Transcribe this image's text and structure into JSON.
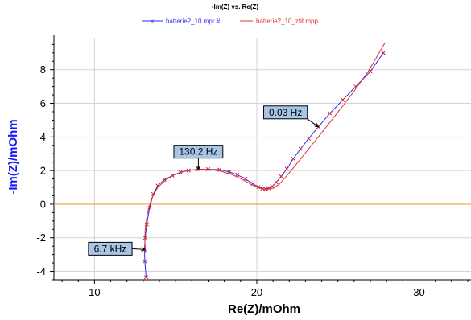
{
  "chart_data": {
    "type": "line",
    "title": "-Im(Z) vs. Re(Z)",
    "xlabel": "Re(Z)/mOhm",
    "ylabel": "-Im(Z)/mOhm",
    "xlim": [
      7.5,
      33.2
    ],
    "ylim": [
      -4.5,
      9.9
    ],
    "xticks": [
      10,
      20,
      30
    ],
    "yticks": [
      -4,
      -2,
      0,
      2,
      4,
      6,
      8
    ],
    "grid": true,
    "legend_position": "top-center",
    "reference_line": {
      "y": 0,
      "color": "#f0a040"
    },
    "series": [
      {
        "name": "batterie2_10.mpr #",
        "color": "#2a2aff",
        "marker": "x",
        "x": [
          13.18,
          13.1,
          13.08,
          13.12,
          13.22,
          13.4,
          13.62,
          13.9,
          14.3,
          14.8,
          15.3,
          15.8,
          16.4,
          17.0,
          17.7,
          18.3,
          18.8,
          19.3,
          19.75,
          20.1,
          20.35,
          20.55,
          20.75,
          20.95,
          21.2,
          21.5,
          21.85,
          22.25,
          22.7,
          23.2,
          23.8,
          24.5,
          25.3,
          26.1,
          27.0,
          27.8
        ],
        "y": [
          -4.35,
          -3.4,
          -2.7,
          -2.0,
          -1.2,
          -0.2,
          0.6,
          1.1,
          1.45,
          1.7,
          1.9,
          2.0,
          2.07,
          2.08,
          2.05,
          1.92,
          1.75,
          1.5,
          1.22,
          1.02,
          0.92,
          0.9,
          0.95,
          1.05,
          1.3,
          1.65,
          2.1,
          2.7,
          3.3,
          3.9,
          4.6,
          5.4,
          6.2,
          7.0,
          7.9,
          9.0
        ]
      },
      {
        "name": "batterie2_10_zfit.mpp",
        "color": "#e03030",
        "marker": "none",
        "x": [
          13.15,
          13.1,
          13.12,
          13.25,
          13.5,
          13.9,
          14.4,
          15.0,
          15.7,
          16.4,
          17.1,
          17.8,
          18.5,
          19.1,
          19.7,
          20.2,
          20.6,
          21.0,
          21.4,
          21.9,
          22.5,
          23.2,
          24.0,
          24.9,
          25.9,
          26.9,
          27.9
        ],
        "y": [
          -2.9,
          -2.2,
          -1.5,
          -0.6,
          0.3,
          1.0,
          1.45,
          1.78,
          2.0,
          2.08,
          2.06,
          1.96,
          1.75,
          1.48,
          1.15,
          0.95,
          0.88,
          0.95,
          1.2,
          1.75,
          2.45,
          3.3,
          4.25,
          5.35,
          6.6,
          7.95,
          9.6
        ]
      }
    ],
    "annotations": [
      {
        "text": "6.7 kHz",
        "x": 13.1,
        "y": -2.7
      },
      {
        "text": "130.2 Hz",
        "x": 16.4,
        "y": 2.07
      },
      {
        "text": "0.03 Hz",
        "x": 23.8,
        "y": 4.6
      }
    ]
  }
}
